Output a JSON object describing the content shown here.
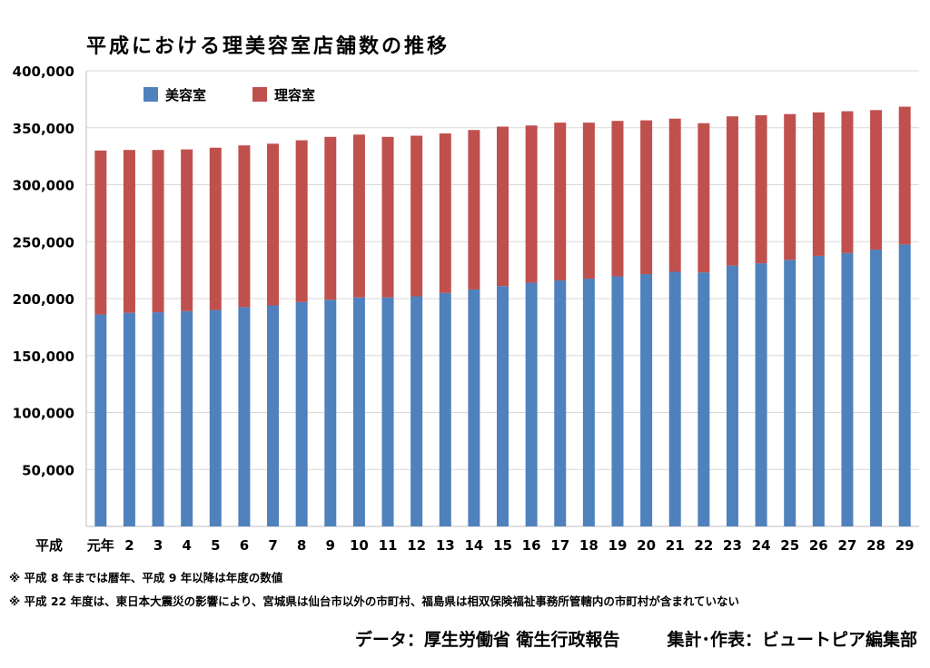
{
  "chart_data": {
    "type": "bar",
    "stacked": true,
    "title": "平成における理美容室店舗数の推移",
    "x_prefix_label": "平成",
    "categories": [
      "元年",
      "2",
      "3",
      "4",
      "5",
      "6",
      "7",
      "8",
      "9",
      "10",
      "11",
      "12",
      "13",
      "14",
      "15",
      "16",
      "17",
      "18",
      "19",
      "20",
      "21",
      "22",
      "23",
      "24",
      "25",
      "26",
      "27",
      "28",
      "29"
    ],
    "series": [
      {
        "name": "美容室",
        "color": "#4f81bd",
        "values": [
          186000,
          187500,
          188000,
          189000,
          190000,
          192500,
          194000,
          197000,
          199000,
          201000,
          201000,
          202000,
          205000,
          208000,
          211000,
          214000,
          216000,
          217500,
          219500,
          221500,
          223500,
          223000,
          229000,
          231000,
          234000,
          237500,
          240000,
          243000,
          247500
        ]
      },
      {
        "name": "理容室",
        "color": "#c0504d",
        "values": [
          144000,
          143000,
          142500,
          142000,
          142500,
          142000,
          142000,
          142000,
          143000,
          143000,
          141000,
          141000,
          140000,
          140000,
          140000,
          138000,
          138500,
          137000,
          136500,
          135000,
          134500,
          131000,
          131000,
          130000,
          128000,
          126000,
          124500,
          122500,
          121000
        ]
      }
    ],
    "ylim": [
      0,
      400000
    ],
    "yticks": [
      50000,
      100000,
      150000,
      200000,
      250000,
      300000,
      350000,
      400000
    ],
    "ytick_labels": [
      "50,000",
      "100,000",
      "150,000",
      "200,000",
      "250,000",
      "300,000",
      "350,000",
      "400,000"
    ],
    "grid": true,
    "legend_position": "top-left"
  },
  "notes": [
    "※ 平成 8 年までは暦年、平成 9 年以降は年度の数値",
    "※ 平成 22 年度は、東日本大震災の影響により、宮城県は仙台市以外の市町村、福島県は相双保険福祉事務所管轄内の市町村が含まれていない"
  ],
  "source": {
    "data_label": "データ：厚生労働省 衛生行政報告",
    "author_label": "集計･作表：ビュートピア編集部"
  }
}
